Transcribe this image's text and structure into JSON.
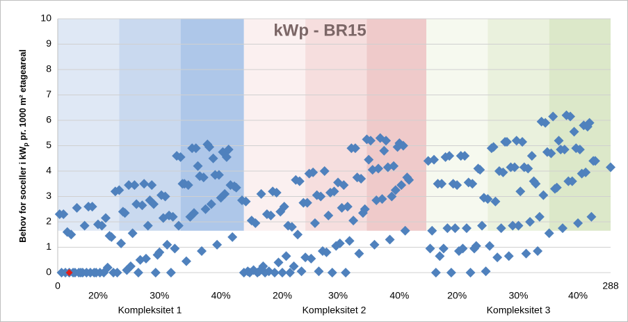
{
  "chart_data": {
    "type": "scatter",
    "title": "kWp - BR15",
    "title_color": "#7b6666",
    "ylabel": [
      "Behov for soceller i kW",
      "p",
      " pr. 1000 m² etageareal"
    ],
    "xlim": [
      0,
      288
    ],
    "ylim": [
      0,
      10
    ],
    "yticks": [
      0,
      1,
      2,
      3,
      4,
      5,
      6,
      7,
      8,
      9,
      10
    ],
    "xticks": [
      0,
      288
    ],
    "xticks_pct": [
      {
        "value": 21,
        "label": "20%"
      },
      {
        "value": 53,
        "label": "30%"
      },
      {
        "value": 85,
        "label": "40%"
      },
      {
        "value": 117,
        "label": "20%"
      },
      {
        "value": 146,
        "label": "30%"
      },
      {
        "value": 178,
        "label": "40%"
      },
      {
        "value": 208,
        "label": "20%"
      },
      {
        "value": 240,
        "label": "30%"
      },
      {
        "value": 271,
        "label": "40%"
      }
    ],
    "xgroups": [
      {
        "value": 48,
        "label": "Kompleksitet 1"
      },
      {
        "value": 144,
        "label": "Kompleksitet 2"
      },
      {
        "value": 240,
        "label": "Kompleksitet 3"
      }
    ],
    "grid": true,
    "bands": [
      {
        "x0": 0,
        "x1": 32,
        "y0": 1.65,
        "y1": 10,
        "color": "#dfe8f5"
      },
      {
        "x0": 32,
        "x1": 64,
        "y0": 1.65,
        "y1": 10,
        "color": "#c9d9ef"
      },
      {
        "x0": 64,
        "x1": 97,
        "y0": 1.65,
        "y1": 10,
        "color": "#aec7e9"
      },
      {
        "x0": 97,
        "x1": 129,
        "y0": 1.65,
        "y1": 10,
        "color": "#fbf0f0"
      },
      {
        "x0": 129,
        "x1": 161,
        "y0": 1.65,
        "y1": 10,
        "color": "#f6dede"
      },
      {
        "x0": 161,
        "x1": 192,
        "y0": 1.65,
        "y1": 10,
        "color": "#efcaca"
      },
      {
        "x0": 192,
        "x1": 224,
        "y0": 1.65,
        "y1": 10,
        "color": "#f6f9ef"
      },
      {
        "x0": 224,
        "x1": 256,
        "y0": 1.65,
        "y1": 10,
        "color": "#eaf1dd"
      },
      {
        "x0": 256,
        "x1": 288,
        "y0": 1.65,
        "y1": 10,
        "color": "#dce8c9"
      }
    ],
    "series": [
      {
        "color": "#4f81bd",
        "x": [
          1,
          2,
          3,
          4,
          5,
          6,
          7,
          8,
          9,
          10,
          11,
          12,
          13,
          14,
          15,
          16,
          17,
          18,
          19,
          20,
          21,
          22,
          23,
          24,
          25,
          26,
          27,
          28,
          29,
          30,
          31,
          32,
          33,
          34,
          35,
          36,
          37,
          38,
          39,
          40,
          41,
          42,
          43,
          44,
          45,
          46,
          47,
          48,
          49,
          50,
          51,
          52,
          53,
          54,
          55,
          56,
          57,
          58,
          59,
          60,
          61,
          62,
          63,
          64,
          65,
          66,
          67,
          68,
          69,
          70,
          71,
          72,
          73,
          74,
          75,
          76,
          77,
          78,
          79,
          80,
          81,
          82,
          83,
          84,
          85,
          86,
          87,
          88,
          89,
          90,
          91,
          92,
          93
        ],
        "values": [
          2.3,
          0,
          2.3,
          0,
          1.6,
          0,
          1.5,
          0,
          0,
          2.55,
          0,
          0,
          0,
          1.85,
          0,
          2.6,
          0,
          2.6,
          0,
          0,
          1.9,
          0,
          1.85,
          0,
          2.15,
          0.2,
          1.45,
          1.4,
          0,
          3.2,
          0,
          3.25,
          1.15,
          2.4,
          2.35,
          0.1,
          3.45,
          0.25,
          1.55,
          3.45,
          2.7,
          0,
          0.5,
          2.65,
          3.5,
          0.55,
          1.85,
          2.85,
          3.45,
          2.7,
          0,
          0.7,
          0.8,
          3.05,
          2.15,
          3.0,
          1.1,
          2.25,
          0,
          2.2,
          0.95,
          4.6,
          1.85,
          4.55,
          3.5,
          3.5,
          0.45,
          3.45,
          2.2,
          4.9,
          2.35,
          4.9,
          4.2,
          3.8,
          0.85,
          3.75,
          2.5,
          5.05,
          4.95,
          2.7,
          4.5,
          3.85,
          1.1,
          3.85,
          2.95,
          4.75,
          3.1,
          4.55,
          4.85,
          3.45,
          1.4,
          3.4,
          3.35
        ]
      },
      {
        "color": "#4f81bd",
        "x": [
          96,
          97,
          98,
          99,
          100,
          101,
          102,
          103,
          104,
          105,
          106,
          107,
          108,
          109,
          110,
          111,
          112,
          113,
          114,
          115,
          116,
          117,
          118,
          119,
          120,
          121,
          122,
          123,
          124,
          125,
          126,
          127,
          128,
          129,
          130,
          131,
          132,
          133,
          134,
          135,
          136,
          137,
          138,
          139,
          140,
          141,
          142,
          143,
          144,
          145,
          146,
          147,
          148,
          149,
          150,
          151,
          152,
          153,
          154,
          155,
          156,
          157,
          158,
          159,
          160,
          161,
          162,
          163,
          164,
          165,
          166,
          167,
          168,
          169,
          170,
          171,
          172,
          173,
          174,
          175,
          176,
          177,
          178,
          179,
          180,
          181,
          182,
          183
        ],
        "values": [
          2.85,
          0,
          2.8,
          0.05,
          0,
          2.05,
          0.1,
          1.95,
          0,
          0.05,
          3.1,
          0.25,
          0,
          2.3,
          0.05,
          2.25,
          3.2,
          0,
          3.15,
          0.4,
          2.4,
          0,
          2.6,
          0.65,
          1.85,
          0,
          1.8,
          0.25,
          3.65,
          1.5,
          3.6,
          0.05,
          2.75,
          0.6,
          2.75,
          3.9,
          0.55,
          3.95,
          1.95,
          3.05,
          0.05,
          3.0,
          0.85,
          4.0,
          0.8,
          2.25,
          3.15,
          0,
          3.2,
          1.05,
          3.55,
          1.15,
          2.55,
          3.45,
          0,
          2.6,
          1.25,
          4.9,
          2.05,
          4.9,
          3.75,
          0.75,
          3.7,
          2.35,
          2.5,
          5.25,
          4.45,
          5.2,
          4.05,
          1.1,
          2.85,
          4.1,
          5.3,
          2.9,
          4.8,
          5.2,
          4.15,
          1.3,
          3.0,
          4.2,
          3.25,
          4.95,
          5.1,
          3.45,
          5.0,
          1.65,
          3.75,
          3.65
        ]
      },
      {
        "color": "#4f81bd",
        "x": [
          193,
          194,
          195,
          196,
          197,
          198,
          199,
          200,
          201,
          202,
          203,
          204,
          205,
          206,
          207,
          208,
          209,
          210,
          211,
          212,
          213,
          214,
          215,
          216,
          217,
          218,
          219,
          220,
          221,
          222,
          223,
          224,
          225,
          226,
          227,
          228,
          229,
          230,
          231,
          232,
          233,
          234,
          235,
          236,
          237,
          238,
          239,
          240,
          241,
          242,
          243,
          244,
          245,
          246,
          247,
          248,
          249,
          250,
          251,
          252,
          253,
          254,
          255,
          256,
          257,
          258,
          259,
          260,
          261,
          262,
          263,
          264,
          265,
          266,
          267,
          268,
          269,
          270,
          271,
          272,
          273,
          274,
          275,
          276,
          277,
          278,
          279,
          280,
          288
        ],
        "values": [
          4.4,
          0.95,
          1.65,
          4.45,
          0,
          3.5,
          0.65,
          3.5,
          0.95,
          4.55,
          1.75,
          4.6,
          0,
          3.5,
          1.75,
          3.45,
          0.85,
          4.6,
          0.95,
          4.6,
          1.75,
          3.55,
          0,
          3.5,
          0.95,
          1.05,
          4.1,
          4.05,
          1.85,
          2.95,
          0.05,
          2.9,
          1.05,
          4.9,
          4.95,
          2.8,
          0.6,
          4.0,
          1.75,
          3.95,
          5.15,
          5.15,
          0.65,
          4.15,
          1.85,
          4.15,
          5.2,
          1.85,
          3.2,
          5.15,
          4.15,
          0.75,
          4.1,
          2.0,
          4.6,
          3.6,
          3.5,
          0.85,
          2.2,
          5.95,
          3.05,
          5.9,
          4.75,
          1.55,
          4.7,
          6.15,
          3.3,
          3.35,
          5.2,
          4.85,
          1.75,
          4.85,
          6.2,
          3.6,
          6.15,
          3.6,
          5.55,
          4.9,
          1.95,
          4.85,
          3.9,
          5.8,
          3.95,
          5.75,
          5.9,
          2.2,
          4.4,
          4.4,
          4.15
        ]
      },
      {
        "color": "#e0201b",
        "x": [
          6
        ],
        "values": [
          0
        ]
      }
    ]
  }
}
